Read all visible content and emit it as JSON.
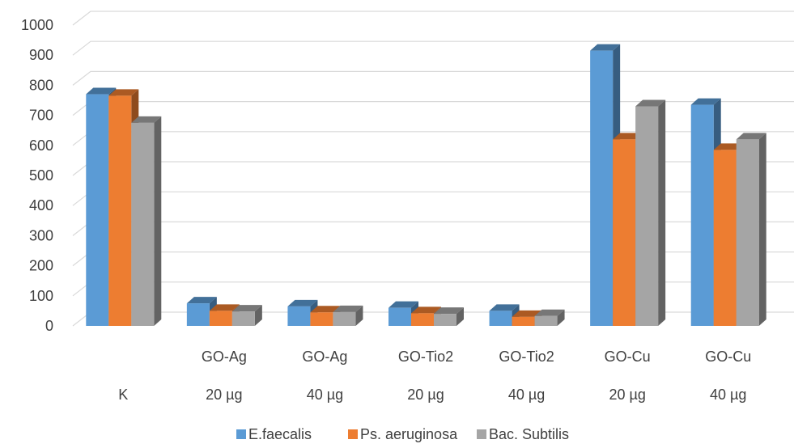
{
  "chart_data": {
    "type": "bar",
    "style": "3d-clustered-column",
    "categories": [
      [
        "K"
      ],
      [
        "GO-Ag",
        "20 µg"
      ],
      [
        "GO-Ag",
        "40 µg"
      ],
      [
        "GO-Tio2",
        "20 µg"
      ],
      [
        "GO-Tio2",
        "40 µg"
      ],
      [
        "GO-Cu",
        "20 µg"
      ],
      [
        "GO-Cu",
        "40 µg"
      ]
    ],
    "series": [
      {
        "name": "E.faecalis",
        "color": "#5B9BD5",
        "values": [
          770,
          75,
          65,
          60,
          50,
          915,
          735
        ]
      },
      {
        "name": "Ps. aeruginosa",
        "color": "#ED7D31",
        "values": [
          765,
          50,
          45,
          42,
          30,
          620,
          585
        ]
      },
      {
        "name": "Bac. Subtilis",
        "color": "#A5A5A5",
        "values": [
          675,
          48,
          46,
          40,
          33,
          730,
          620
        ]
      }
    ],
    "ylim": [
      0,
      1000
    ],
    "yticks": [
      0,
      100,
      200,
      300,
      400,
      500,
      600,
      700,
      800,
      900,
      1000
    ],
    "grid": true,
    "legend": "bottom",
    "title": "",
    "xlabel": "",
    "ylabel": ""
  }
}
